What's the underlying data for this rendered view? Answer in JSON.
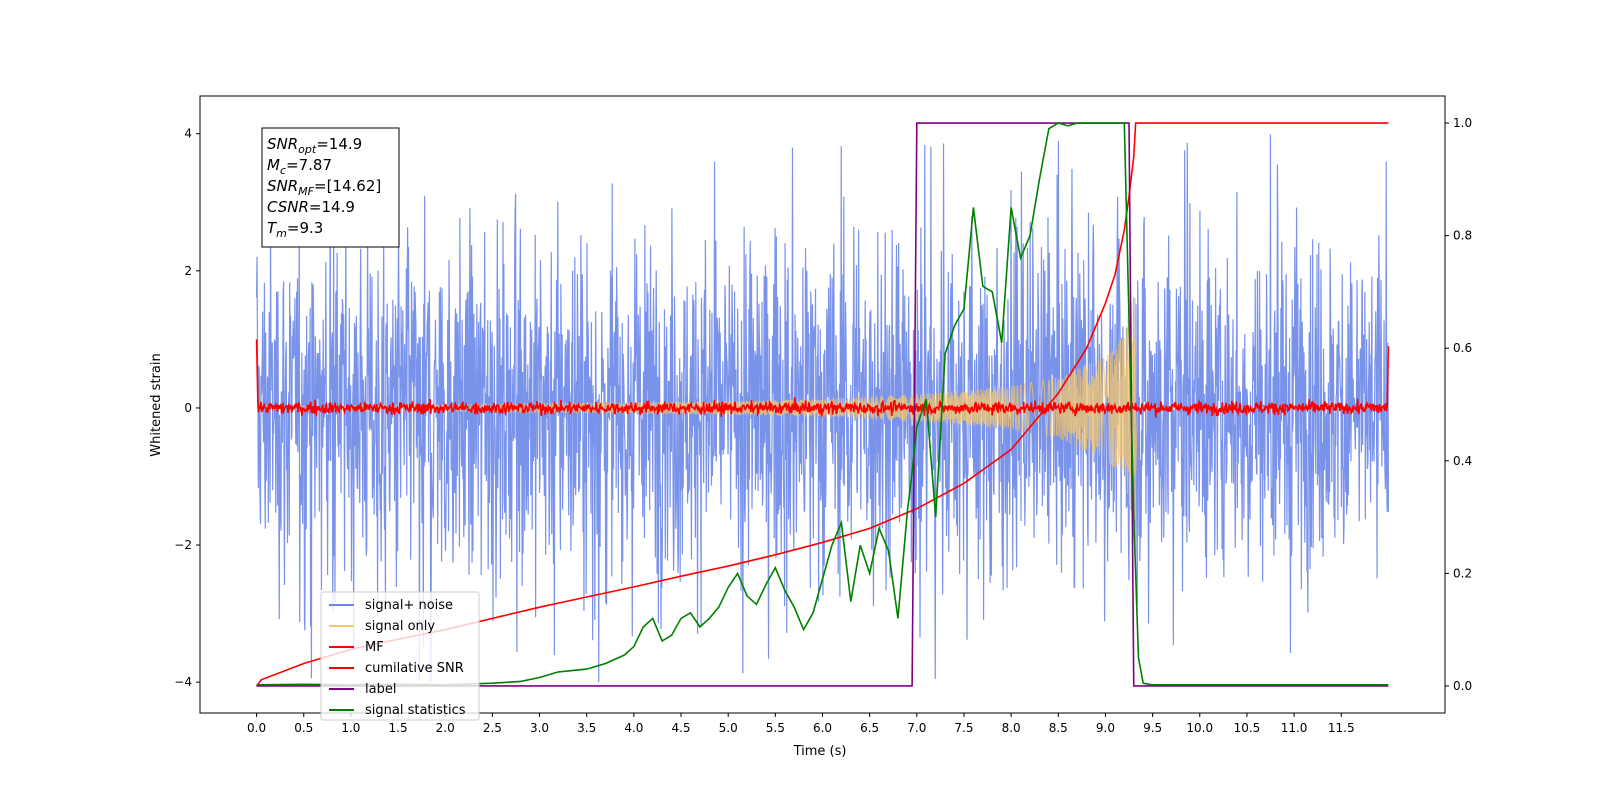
{
  "chart_data": {
    "type": "line",
    "xlabel": "Time (s)",
    "ylabel": "Whitened strain",
    "xlim": [
      -0.6,
      12.6
    ],
    "ylim": [
      -4.45,
      4.55
    ],
    "y2lim": [
      -0.048,
      1.048
    ],
    "xticks": [
      "0.0",
      "0.5",
      "1.0",
      "1.5",
      "2.0",
      "2.5",
      "3.0",
      "3.5",
      "4.0",
      "4.5",
      "5.0",
      "5.5",
      "6.0",
      "6.5",
      "7.0",
      "7.5",
      "8.0",
      "8.5",
      "9.0",
      "9.5",
      "10.0",
      "10.5",
      "11.0",
      "11.5"
    ],
    "yticks": [
      "−4",
      "−2",
      "0",
      "2",
      "4"
    ],
    "y2ticks": [
      "0.0",
      "0.2",
      "0.4",
      "0.6",
      "0.8",
      "1.0"
    ],
    "grid": false,
    "legend_position": "lower-left",
    "legend": [
      {
        "label": "signal+ noise",
        "color": "#6a86e8"
      },
      {
        "label": "signal only",
        "color": "#f5c76b"
      },
      {
        "label": "MF",
        "color": "#ff0000"
      },
      {
        "label": "cumilative SNR",
        "color": "#ff0000"
      },
      {
        "label": "label",
        "color": "#800080"
      },
      {
        "label": "signal statistics",
        "color": "#008000"
      }
    ],
    "annotation": {
      "snr_opt": {
        "name": "SNR",
        "sub": "opt",
        "value": "=14.9"
      },
      "mc": {
        "name": "M",
        "sub": "c",
        "value": "=7.87"
      },
      "snr_mf": {
        "name": "SNR",
        "sub": "MF",
        "value": "=[14.62]"
      },
      "csnr": {
        "name": "CSNR",
        "sub": "",
        "value": "=14.9"
      },
      "tm": {
        "name": "T",
        "sub": "m",
        "value": "=9.3"
      }
    },
    "series": [
      {
        "name": "signal+ noise",
        "axis": "left",
        "color": "#6a86e8",
        "kind": "noise",
        "x_range": [
          0,
          12
        ],
        "typical_range": [
          -2.2,
          2.2
        ],
        "extreme_range": [
          -4.0,
          4.15
        ]
      },
      {
        "name": "signal only",
        "axis": "left",
        "color": "#f5c76b",
        "kind": "chirp",
        "envelope": {
          "x": [
            0,
            2,
            4,
            5,
            6,
            7,
            7.5,
            8,
            8.5,
            9.0,
            9.2,
            9.25,
            9.3
          ],
          "y": [
            0.02,
            0.05,
            0.08,
            0.1,
            0.13,
            0.2,
            0.25,
            0.32,
            0.45,
            0.75,
            1.05,
            1.5,
            1.7
          ]
        },
        "end": 9.32
      },
      {
        "name": "MF",
        "axis": "left",
        "color": "#ff0000",
        "kind": "noise",
        "x_range": [
          0,
          12
        ],
        "typical_range": [
          -0.1,
          0.1
        ],
        "edge_values": {
          "start": 1.0,
          "end": 0.9
        }
      },
      {
        "name": "cumilative SNR",
        "axis": "right",
        "color": "#ff0000",
        "x": [
          0,
          0.05,
          0.5,
          1,
          1.5,
          2,
          2.5,
          3,
          3.5,
          4,
          4.5,
          5,
          5.5,
          6,
          6.5,
          7,
          7.5,
          8,
          8.5,
          8.8,
          9.0,
          9.1,
          9.2,
          9.25,
          9.3,
          9.32,
          12
        ],
        "y": [
          0,
          0.011,
          0.04,
          0.065,
          0.083,
          0.1,
          0.12,
          0.14,
          0.158,
          0.176,
          0.195,
          0.213,
          0.233,
          0.255,
          0.28,
          0.315,
          0.36,
          0.42,
          0.52,
          0.6,
          0.68,
          0.73,
          0.81,
          0.87,
          0.94,
          1.0,
          1.0
        ]
      },
      {
        "name": "label",
        "axis": "right",
        "color": "#800080",
        "x": [
          0,
          6.95,
          7.0,
          9.25,
          9.3,
          12
        ],
        "y": [
          0,
          0,
          1,
          1,
          0,
          0
        ]
      },
      {
        "name": "signal statistics",
        "axis": "right",
        "color": "#008000",
        "x": [
          0,
          0.5,
          1.0,
          1.5,
          2.0,
          2.5,
          2.8,
          3.0,
          3.2,
          3.5,
          3.7,
          3.9,
          4.0,
          4.1,
          4.2,
          4.3,
          4.4,
          4.5,
          4.6,
          4.7,
          4.8,
          4.9,
          5.0,
          5.1,
          5.2,
          5.3,
          5.4,
          5.5,
          5.6,
          5.7,
          5.8,
          5.9,
          6.0,
          6.1,
          6.2,
          6.3,
          6.4,
          6.5,
          6.6,
          6.7,
          6.8,
          6.9,
          6.95,
          7.0,
          7.1,
          7.2,
          7.3,
          7.4,
          7.5,
          7.6,
          7.7,
          7.8,
          7.9,
          8.0,
          8.1,
          8.2,
          8.3,
          8.4,
          8.5,
          8.6,
          8.7,
          8.8,
          9.0,
          9.2,
          9.3,
          9.35,
          9.4,
          9.5,
          10,
          11,
          12
        ],
        "y": [
          0.002,
          0.003,
          0.002,
          0.003,
          0.002,
          0.005,
          0.008,
          0.015,
          0.025,
          0.03,
          0.04,
          0.055,
          0.07,
          0.105,
          0.12,
          0.08,
          0.09,
          0.12,
          0.13,
          0.105,
          0.12,
          0.14,
          0.175,
          0.2,
          0.16,
          0.145,
          0.18,
          0.21,
          0.17,
          0.14,
          0.1,
          0.13,
          0.19,
          0.25,
          0.29,
          0.15,
          0.25,
          0.2,
          0.28,
          0.24,
          0.12,
          0.31,
          0.38,
          0.46,
          0.51,
          0.3,
          0.59,
          0.64,
          0.67,
          0.85,
          0.71,
          0.7,
          0.61,
          0.85,
          0.76,
          0.8,
          0.9,
          0.99,
          1.0,
          0.995,
          1.0,
          1.0,
          1.0,
          1.0,
          0.3,
          0.05,
          0.005,
          0.002,
          0.002,
          0.002,
          0.002
        ]
      }
    ]
  }
}
